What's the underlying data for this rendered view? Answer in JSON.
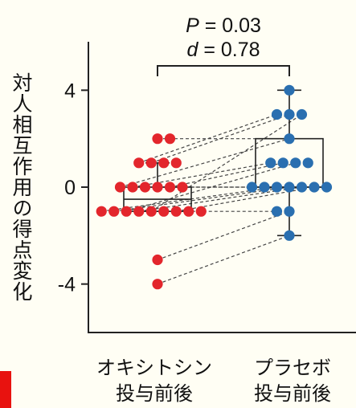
{
  "chart_data": {
    "type": "scatter",
    "subtype": "paired dot plot with box plots",
    "ylabel": "対人相互作用の得点変化",
    "ylim": [
      -6,
      6
    ],
    "yticks": [
      4,
      0,
      -4
    ],
    "ytick_labels": [
      "4",
      "0",
      "-4"
    ],
    "categories": [
      {
        "line1": "オキシトシン",
        "line2": "投与前後"
      },
      {
        "line1": "プラセボ",
        "line2": "投与前後"
      }
    ],
    "series": [
      {
        "color": "#e3262c",
        "points": [
          {
            "x": 0,
            "y": 2
          },
          {
            "x": 1,
            "y": 2
          },
          {
            "x": -1.5,
            "y": 1
          },
          {
            "x": -0.5,
            "y": 1
          },
          {
            "x": 0.5,
            "y": 1
          },
          {
            "x": 1.5,
            "y": 1
          },
          {
            "x": -3,
            "y": 0
          },
          {
            "x": -2,
            "y": 0
          },
          {
            "x": -1,
            "y": 0
          },
          {
            "x": 0,
            "y": 0
          },
          {
            "x": 1,
            "y": 0
          },
          {
            "x": 2,
            "y": 0
          },
          {
            "x": -4.5,
            "y": -1
          },
          {
            "x": -3.5,
            "y": -1
          },
          {
            "x": -2.5,
            "y": -1
          },
          {
            "x": -1.5,
            "y": -1
          },
          {
            "x": -0.5,
            "y": -1
          },
          {
            "x": 0.5,
            "y": -1
          },
          {
            "x": 1.5,
            "y": -1
          },
          {
            "x": 2.5,
            "y": -1
          },
          {
            "x": 3.5,
            "y": -1
          },
          {
            "x": 0,
            "y": -3
          },
          {
            "x": 0,
            "y": -4
          }
        ],
        "box": {
          "whisker_low": -1,
          "q1": -1,
          "median": -0.5,
          "q3": 0,
          "whisker_high": 1
        }
      },
      {
        "color": "#2a6fb0",
        "points": [
          {
            "x": 0,
            "y": 4
          },
          {
            "x": -1,
            "y": 3
          },
          {
            "x": 0,
            "y": 3
          },
          {
            "x": 1,
            "y": 3
          },
          {
            "x": 0,
            "y": 2
          },
          {
            "x": -1.5,
            "y": 1
          },
          {
            "x": -0.5,
            "y": 1
          },
          {
            "x": 0.5,
            "y": 1
          },
          {
            "x": 1.5,
            "y": 1
          },
          {
            "x": -3,
            "y": 0
          },
          {
            "x": -2,
            "y": 0
          },
          {
            "x": -1,
            "y": 0
          },
          {
            "x": 0,
            "y": 0
          },
          {
            "x": 1,
            "y": 0
          },
          {
            "x": 2,
            "y": 0
          },
          {
            "x": 3,
            "y": 0
          },
          {
            "x": -1,
            "y": -1
          },
          {
            "x": 0,
            "y": -1
          },
          {
            "x": 0,
            "y": -2
          }
        ],
        "box": {
          "whisker_low": -2,
          "q1": 0,
          "median": 0,
          "q3": 2,
          "whisker_high": 4
        }
      }
    ],
    "pairs": [
      [
        2,
        2
      ],
      [
        1,
        3
      ],
      [
        1,
        3
      ],
      [
        0,
        2
      ],
      [
        0,
        1
      ],
      [
        0,
        0
      ],
      [
        0,
        0
      ],
      [
        0,
        1
      ],
      [
        -1,
        0
      ],
      [
        -1,
        0
      ],
      [
        -1,
        1
      ],
      [
        -1,
        0
      ],
      [
        -1,
        3
      ],
      [
        -1,
        -1
      ],
      [
        -1,
        0
      ],
      [
        -3,
        -1
      ],
      [
        -4,
        -2
      ]
    ],
    "annotation": {
      "p_symbol": "P",
      "p_text": " = 0.03",
      "d_symbol": "d",
      "d_text": " = 0.78"
    }
  }
}
